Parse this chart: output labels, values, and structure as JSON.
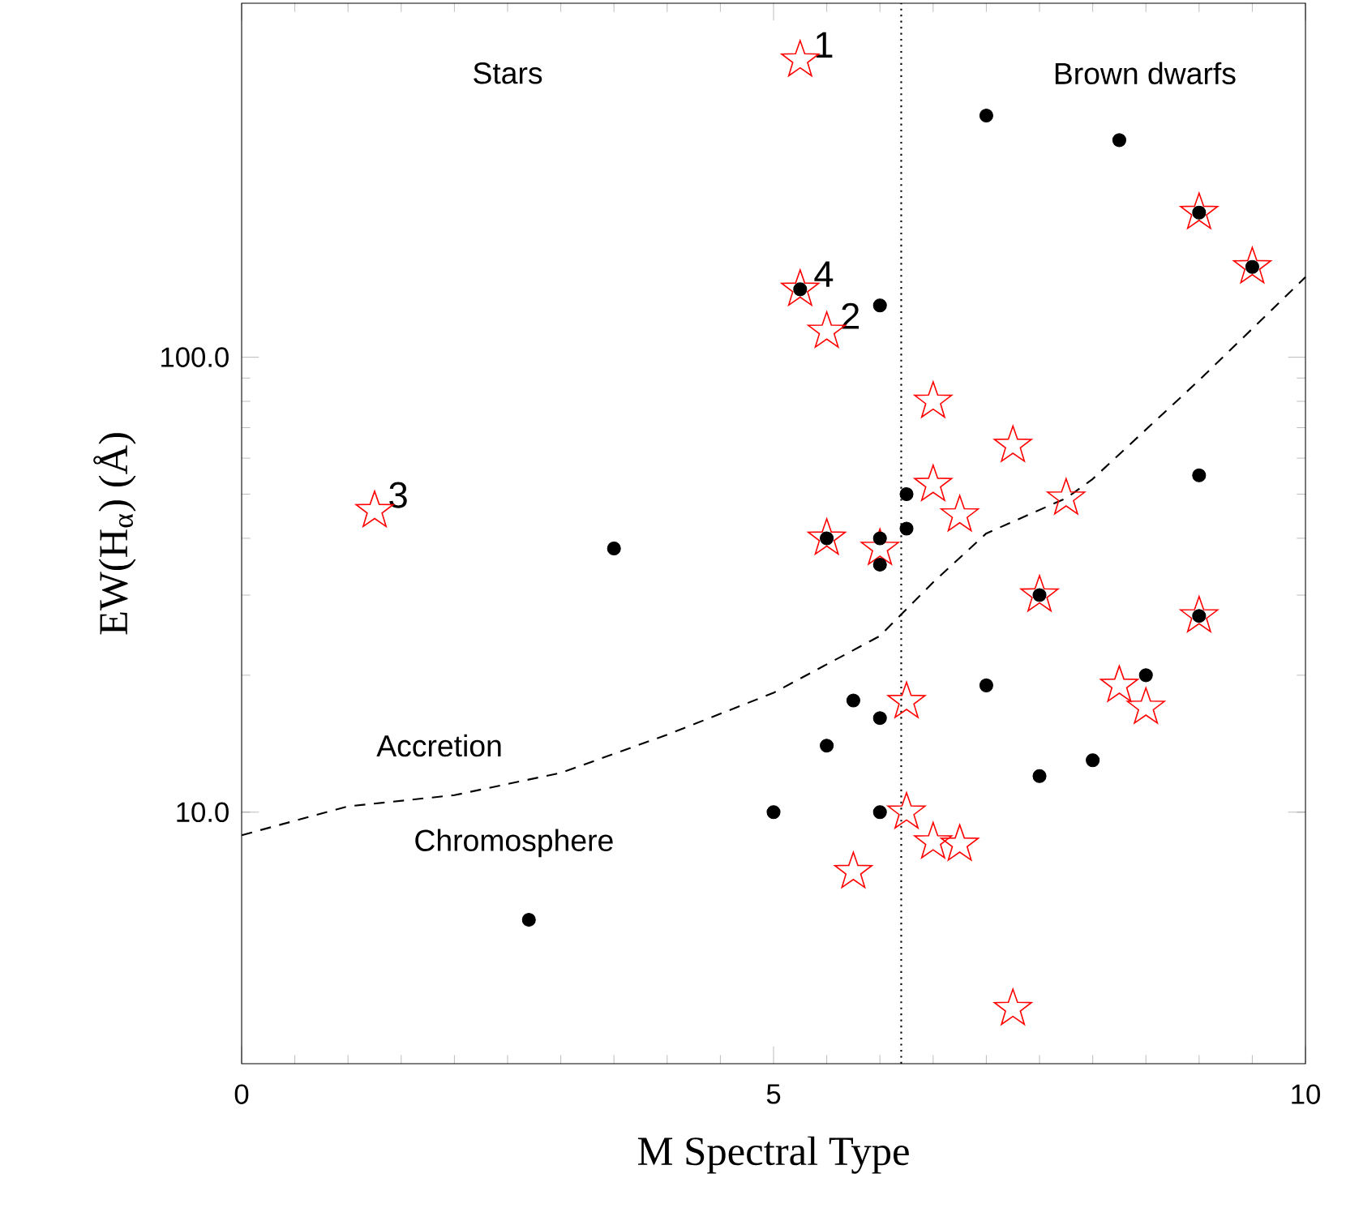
{
  "chart_data": {
    "type": "scatter",
    "xlabel": "M Spectral Type",
    "ylabel": "EW(H$_{α}$) (Å)",
    "xlim": [
      0,
      10
    ],
    "xticks": [
      0,
      5,
      10
    ],
    "ylim": [
      2.8,
      600
    ],
    "yticks": [
      {
        "value": 10,
        "label": "10.0"
      },
      {
        "value": 100,
        "label": "100.0"
      }
    ],
    "log": "y",
    "series": [
      {
        "marker": "star",
        "color": "#ff0000",
        "x": [
          5.25,
          5.25,
          5.5,
          1.25,
          6.5,
          7.25,
          6.5,
          6.75,
          7.75,
          9,
          9.5,
          5.5,
          6,
          7.5,
          9,
          6.25,
          8.25,
          8.5,
          6.25,
          6.5,
          6.75,
          5.75,
          7.25
        ],
        "values": [
          450,
          141,
          114,
          46,
          80,
          64,
          52.5,
          45,
          49,
          208,
          158,
          40,
          38,
          30,
          27,
          17.5,
          19,
          17,
          10,
          8.6,
          8.5,
          7.4,
          3.7
        ]
      },
      {
        "marker": "circle",
        "color": "#000000",
        "x": [
          3.5,
          2.7,
          5,
          5.5,
          5.75,
          6,
          6,
          5.25,
          6,
          7,
          8.25,
          9,
          9.5,
          6.25,
          6.25,
          5.5,
          6,
          6,
          9,
          7.5,
          9,
          8.5,
          7,
          7.5,
          8
        ],
        "values": [
          38,
          5.8,
          10,
          14,
          17.6,
          16.1,
          10,
          141,
          130,
          340,
          300,
          208,
          158,
          50,
          42,
          40,
          40,
          35,
          55,
          30,
          27,
          20,
          19,
          12,
          13
        ]
      },
      {
        "type": "line",
        "marker": "none",
        "line_style": "dashed",
        "color": "#000000",
        "x": [
          0,
          1,
          2,
          3,
          4,
          5,
          6,
          6.5,
          7,
          7.75,
          8,
          9,
          10
        ],
        "values": [
          8.9,
          10.3,
          10.9,
          12.2,
          14.8,
          18.3,
          24.4,
          32,
          41,
          49,
          54,
          89,
          150
        ]
      }
    ],
    "ref_lines": [
      {
        "axis": "x",
        "value": 6.2,
        "line_style": "dotted",
        "color": "#000000"
      }
    ],
    "annotations": [
      "Stars",
      "Brown dwarfs",
      "Accretion",
      "Chromosphere",
      {
        "text": "1",
        "x": 5.25,
        "y": 450
      },
      {
        "text": "2",
        "x": 5.5,
        "y": 114
      },
      {
        "text": "3",
        "x": 1.25,
        "y": 46
      },
      {
        "text": "4",
        "x": 5.25,
        "y": 141
      }
    ]
  }
}
